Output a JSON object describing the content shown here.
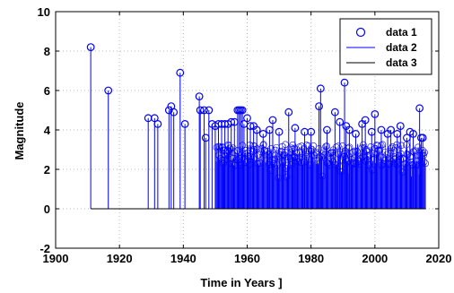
{
  "chart_data": {
    "type": "stem",
    "xlabel": "Time in Years ]",
    "ylabel": "Magnitude",
    "xlim": [
      1900,
      2020
    ],
    "ylim": [
      -2,
      10
    ],
    "x_ticks": [
      "1900",
      "1920",
      "1940",
      "1960",
      "1980",
      "2000",
      "2020"
    ],
    "y_ticks": [
      "-2",
      "0",
      "2",
      "4",
      "6",
      "8",
      "10"
    ],
    "grid": true,
    "legend_position": "top-right",
    "legend": [
      "data 1",
      "data 2",
      "data 3"
    ],
    "colors": {
      "stem": "#0000ff",
      "baseline": "#000000",
      "grid": "#b4b4b4"
    },
    "series": [
      {
        "name": "data 1",
        "kind": "stem",
        "x": [
          1911,
          1916.5,
          1929,
          1931,
          1932,
          1935.5,
          1936.2,
          1937,
          1939,
          1940.5,
          1945,
          1945.3,
          1946.5,
          1947,
          1948,
          1949,
          1950,
          1951,
          1952,
          1953,
          1954,
          1955,
          1956,
          1957,
          1957.5,
          1958,
          1958.5,
          1959,
          1960,
          1961,
          1962,
          1963,
          1965,
          1967,
          1968,
          1970,
          1973,
          1975,
          1978,
          1980,
          1982.5,
          1983,
          1985,
          1987.5,
          1989,
          1990.5,
          1991,
          1992,
          1994,
          1996,
          1997,
          1999,
          2000,
          2002,
          2004,
          2005,
          2007,
          2008,
          2010,
          2011,
          2012,
          2014,
          2014.5,
          2015
        ],
        "y": [
          8.2,
          6.0,
          4.6,
          4.6,
          4.3,
          5.0,
          5.2,
          4.9,
          6.9,
          4.3,
          5.7,
          5.0,
          5.0,
          3.6,
          5.0,
          4.3,
          4.2,
          4.3,
          4.3,
          4.3,
          4.3,
          4.4,
          4.4,
          5.0,
          5.0,
          5.0,
          5.0,
          4.3,
          4.6,
          4.2,
          4.2,
          4.0,
          3.8,
          4.0,
          4.5,
          3.9,
          4.9,
          4.1,
          3.9,
          3.9,
          5.2,
          6.1,
          4.0,
          4.9,
          4.4,
          6.4,
          4.2,
          4.0,
          3.8,
          4.3,
          4.5,
          3.9,
          4.8,
          4.0,
          3.8,
          4.0,
          3.8,
          4.2,
          3.6,
          3.9,
          3.8,
          5.1,
          3.6,
          3.6
        ]
      }
    ],
    "dense_region": {
      "x": [
        1950,
        2016
      ],
      "y_max": 3.3
    }
  }
}
